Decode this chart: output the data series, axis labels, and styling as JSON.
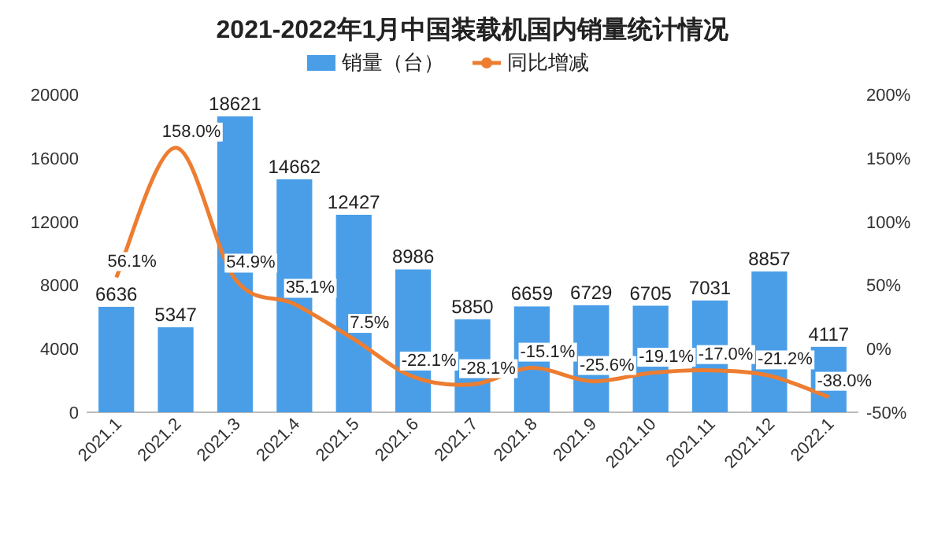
{
  "chart_data": {
    "type": "bar",
    "title": "2021-2022年1月中国装载机国内销量统计情况",
    "legend": "top",
    "categories": [
      "2021.1",
      "2021.2",
      "2021.3",
      "2021.4",
      "2021.5",
      "2021.6",
      "2021.7",
      "2021.8",
      "2021.9",
      "2021.10",
      "2021.11",
      "2021.12",
      "2022.1"
    ],
    "series": [
      {
        "name": "销量（台）",
        "color": "#4a9ee8",
        "values": [
          6636,
          5347,
          18621,
          14662,
          12427,
          8986,
          5850,
          6659,
          6729,
          6705,
          7031,
          8857,
          4117
        ],
        "value_labels": [
          "6636",
          "5347",
          "18621",
          "14662",
          "12427",
          "8986",
          "5850",
          "6659",
          "6729",
          "6705",
          "7031",
          "8857",
          "4117"
        ]
      },
      {
        "name": "同比增减",
        "type": "line",
        "axis": "y2",
        "color": "#ed7d31",
        "values": [
          56.1,
          158.0,
          54.9,
          35.1,
          7.5,
          -22.1,
          -28.1,
          -15.1,
          -25.6,
          -19.1,
          -17.0,
          -21.2,
          -38.0
        ],
        "value_labels": [
          "56.1%",
          "158.0%",
          "54.9%",
          "35.1%",
          "7.5%",
          "-22.1%",
          "-28.1%",
          "-15.1%",
          "-25.6%",
          "-19.1%",
          "-17.0%",
          "-21.2%",
          "-38.0%"
        ]
      }
    ],
    "ylim": [
      0,
      20000
    ],
    "yticks": [
      0,
      4000,
      8000,
      12000,
      16000,
      20000
    ],
    "y2lim": [
      -50,
      200
    ],
    "y2ticks": [
      {
        "value": -50,
        "label": "-50%"
      },
      {
        "value": 0,
        "label": "0%"
      },
      {
        "value": 50,
        "label": "50%"
      },
      {
        "value": 100,
        "label": "100%"
      },
      {
        "value": 150,
        "label": "150%"
      },
      {
        "value": 200,
        "label": "200%"
      }
    ]
  }
}
